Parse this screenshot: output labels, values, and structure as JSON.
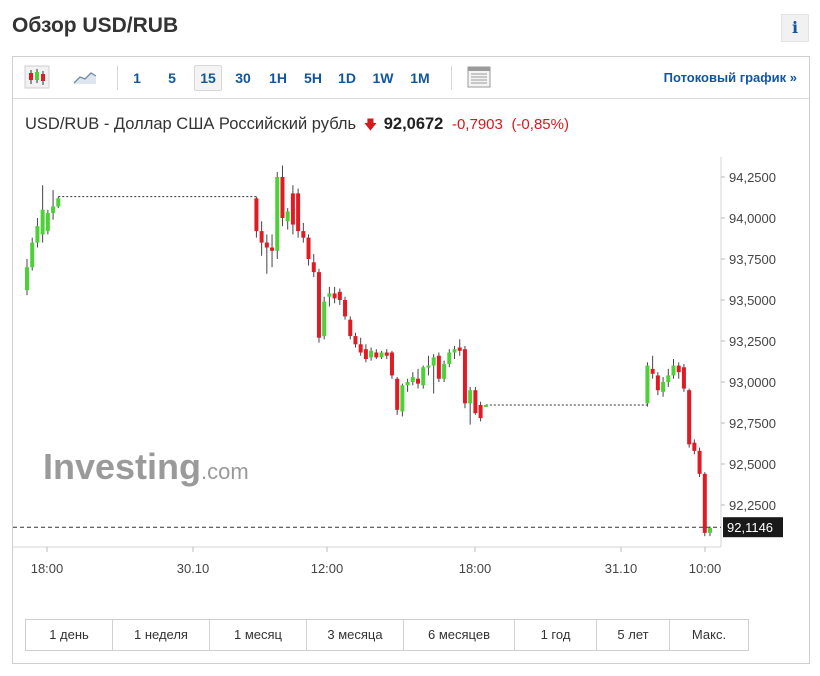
{
  "header": {
    "title": "Обзор USD/RUB",
    "info_label": "i"
  },
  "toolbar": {
    "intervals": [
      "1",
      "5",
      "15",
      "30",
      "1H",
      "5H",
      "1D",
      "1W",
      "1M"
    ],
    "active_interval": "15",
    "stream_label": "Потоковый график »"
  },
  "quote": {
    "name": "USD/RUB - Доллар США Российский рубль",
    "arrow": "🡇",
    "price": "92,0672",
    "change": "-0,7903",
    "change_pct": "(-0,85%)"
  },
  "watermark": {
    "brand": "Investing",
    "suffix": ".com"
  },
  "ranges": [
    "1 день",
    "1 неделя",
    "1 месяц",
    "3 месяца",
    "6 месяцев",
    "1 год",
    "5 лет",
    "Макс."
  ],
  "colors": {
    "up": "#4cd137",
    "down": "#e01b24",
    "link": "#1256a0",
    "last_price_bg": "#1a1a1a"
  },
  "chart_data": {
    "type": "candlestick",
    "y_ticks": [
      "94,2500",
      "94,0000",
      "93,7500",
      "93,5000",
      "93,2500",
      "93,0000",
      "92,7500",
      "92,5000",
      "92,2500"
    ],
    "y_tick_values": [
      94.25,
      94.0,
      93.75,
      93.5,
      93.25,
      93.0,
      92.75,
      92.5,
      92.25
    ],
    "x_ticks": [
      "18:00",
      "30.10",
      "12:00",
      "18:00",
      "31.10",
      "10:00"
    ],
    "ylim": [
      92.0,
      94.4
    ],
    "last_price_label": "92,1146",
    "last_price": 92.1146,
    "gridlines": false,
    "candles": [
      {
        "o": 93.56,
        "h": 93.75,
        "l": 93.53,
        "c": 93.7
      },
      {
        "o": 93.7,
        "h": 93.88,
        "l": 93.68,
        "c": 93.85
      },
      {
        "o": 93.85,
        "h": 94.0,
        "l": 93.82,
        "c": 93.95
      },
      {
        "o": 93.9,
        "h": 94.2,
        "l": 93.85,
        "c": 94.05
      },
      {
        "o": 93.92,
        "h": 94.05,
        "l": 93.9,
        "c": 94.03
      },
      {
        "o": 94.03,
        "h": 94.17,
        "l": 93.99,
        "c": 94.07
      },
      {
        "o": 94.07,
        "h": 94.13,
        "l": 94.06,
        "c": 94.12
      },
      {
        "o": 94.12,
        "h": 94.13,
        "l": 94.12,
        "c": 94.13
      },
      {
        "o": 94.13,
        "h": 94.13,
        "l": 94.13,
        "c": 94.13
      },
      {
        "o": 94.13,
        "h": 94.13,
        "l": 94.13,
        "c": 94.13
      },
      {
        "o": 94.13,
        "h": 94.13,
        "l": 94.13,
        "c": 94.13
      },
      {
        "o": 94.13,
        "h": 94.13,
        "l": 94.13,
        "c": 94.13
      },
      {
        "o": 94.13,
        "h": 94.13,
        "l": 94.13,
        "c": 94.13
      },
      {
        "o": 94.13,
        "h": 94.13,
        "l": 94.13,
        "c": 94.13
      },
      {
        "o": 94.13,
        "h": 94.13,
        "l": 94.13,
        "c": 94.13
      },
      {
        "o": 94.13,
        "h": 94.13,
        "l": 94.13,
        "c": 94.13
      },
      {
        "o": 94.13,
        "h": 94.13,
        "l": 94.13,
        "c": 94.13
      },
      {
        "o": 94.13,
        "h": 94.13,
        "l": 94.13,
        "c": 94.13
      },
      {
        "o": 94.13,
        "h": 94.13,
        "l": 94.13,
        "c": 94.13
      },
      {
        "o": 94.13,
        "h": 94.13,
        "l": 94.13,
        "c": 94.13
      },
      {
        "o": 94.13,
        "h": 94.13,
        "l": 94.13,
        "c": 94.13
      },
      {
        "o": 94.13,
        "h": 94.13,
        "l": 94.13,
        "c": 94.13
      },
      {
        "o": 94.13,
        "h": 94.13,
        "l": 94.13,
        "c": 94.13
      },
      {
        "o": 94.13,
        "h": 94.13,
        "l": 94.13,
        "c": 94.13
      },
      {
        "o": 94.13,
        "h": 94.13,
        "l": 94.13,
        "c": 94.13
      },
      {
        "o": 94.13,
        "h": 94.13,
        "l": 94.13,
        "c": 94.13
      },
      {
        "o": 94.13,
        "h": 94.13,
        "l": 94.13,
        "c": 94.13
      },
      {
        "o": 94.13,
        "h": 94.13,
        "l": 94.13,
        "c": 94.13
      },
      {
        "o": 94.13,
        "h": 94.13,
        "l": 94.13,
        "c": 94.13
      },
      {
        "o": 94.13,
        "h": 94.13,
        "l": 94.13,
        "c": 94.13
      },
      {
        "o": 94.13,
        "h": 94.13,
        "l": 94.13,
        "c": 94.13
      },
      {
        "o": 94.13,
        "h": 94.13,
        "l": 94.13,
        "c": 94.13
      },
      {
        "o": 94.13,
        "h": 94.13,
        "l": 94.13,
        "c": 94.13
      },
      {
        "o": 94.13,
        "h": 94.13,
        "l": 94.13,
        "c": 94.13
      },
      {
        "o": 94.13,
        "h": 94.13,
        "l": 94.13,
        "c": 94.13
      },
      {
        "o": 94.13,
        "h": 94.13,
        "l": 94.13,
        "c": 94.13
      },
      {
        "o": 94.13,
        "h": 94.13,
        "l": 94.13,
        "c": 94.13
      },
      {
        "o": 94.13,
        "h": 94.13,
        "l": 94.13,
        "c": 94.13
      },
      {
        "o": 94.13,
        "h": 94.13,
        "l": 94.13,
        "c": 94.13
      },
      {
        "o": 94.13,
        "h": 94.13,
        "l": 94.13,
        "c": 94.13
      },
      {
        "o": 94.13,
        "h": 94.13,
        "l": 94.13,
        "c": 94.13
      },
      {
        "o": 94.13,
        "h": 94.13,
        "l": 94.13,
        "c": 94.13
      },
      {
        "o": 94.13,
        "h": 94.13,
        "l": 94.13,
        "c": 94.13
      },
      {
        "o": 94.13,
        "h": 94.13,
        "l": 94.13,
        "c": 94.13
      },
      {
        "o": 94.12,
        "h": 94.13,
        "l": 93.88,
        "c": 93.92
      },
      {
        "o": 93.92,
        "h": 93.98,
        "l": 93.77,
        "c": 93.85
      },
      {
        "o": 93.85,
        "h": 93.9,
        "l": 93.66,
        "c": 93.82
      },
      {
        "o": 93.82,
        "h": 93.9,
        "l": 93.7,
        "c": 93.8
      },
      {
        "o": 93.8,
        "h": 94.28,
        "l": 93.75,
        "c": 94.25
      },
      {
        "o": 94.25,
        "h": 94.32,
        "l": 93.95,
        "c": 94.0
      },
      {
        "o": 93.98,
        "h": 94.06,
        "l": 93.93,
        "c": 94.04
      },
      {
        "o": 94.15,
        "h": 94.2,
        "l": 93.9,
        "c": 93.96
      },
      {
        "o": 94.15,
        "h": 94.18,
        "l": 93.88,
        "c": 93.92
      },
      {
        "o": 93.92,
        "h": 93.97,
        "l": 93.85,
        "c": 93.88
      },
      {
        "o": 93.88,
        "h": 93.9,
        "l": 93.71,
        "c": 93.75
      },
      {
        "o": 93.73,
        "h": 93.78,
        "l": 93.64,
        "c": 93.67
      },
      {
        "o": 93.67,
        "h": 93.69,
        "l": 93.24,
        "c": 93.27
      },
      {
        "o": 93.28,
        "h": 93.52,
        "l": 93.26,
        "c": 93.49
      },
      {
        "o": 93.52,
        "h": 93.58,
        "l": 93.46,
        "c": 93.54
      },
      {
        "o": 93.54,
        "h": 93.58,
        "l": 93.48,
        "c": 93.51
      },
      {
        "o": 93.55,
        "h": 93.57,
        "l": 93.47,
        "c": 93.5
      },
      {
        "o": 93.5,
        "h": 93.52,
        "l": 93.38,
        "c": 93.4
      },
      {
        "o": 93.38,
        "h": 93.4,
        "l": 93.26,
        "c": 93.28
      },
      {
        "o": 93.28,
        "h": 93.3,
        "l": 93.21,
        "c": 93.23
      },
      {
        "o": 93.23,
        "h": 93.27,
        "l": 93.16,
        "c": 93.18
      },
      {
        "o": 93.2,
        "h": 93.23,
        "l": 93.12,
        "c": 93.14
      },
      {
        "o": 93.15,
        "h": 93.21,
        "l": 93.13,
        "c": 93.19
      },
      {
        "o": 93.18,
        "h": 93.2,
        "l": 93.14,
        "c": 93.15
      },
      {
        "o": 93.15,
        "h": 93.19,
        "l": 93.14,
        "c": 93.18
      },
      {
        "o": 93.18,
        "h": 93.2,
        "l": 93.14,
        "c": 93.16
      },
      {
        "o": 93.18,
        "h": 93.19,
        "l": 93.02,
        "c": 93.04
      },
      {
        "o": 93.02,
        "h": 93.03,
        "l": 92.8,
        "c": 92.83
      },
      {
        "o": 92.82,
        "h": 92.99,
        "l": 92.79,
        "c": 92.98
      },
      {
        "o": 92.98,
        "h": 93.02,
        "l": 92.94,
        "c": 93.0
      },
      {
        "o": 93.0,
        "h": 93.06,
        "l": 92.98,
        "c": 93.03
      },
      {
        "o": 93.02,
        "h": 93.08,
        "l": 92.96,
        "c": 92.99
      },
      {
        "o": 92.98,
        "h": 93.1,
        "l": 92.96,
        "c": 93.09
      },
      {
        "o": 93.09,
        "h": 93.16,
        "l": 93.04,
        "c": 93.1
      },
      {
        "o": 93.1,
        "h": 93.17,
        "l": 92.93,
        "c": 93.15
      },
      {
        "o": 93.16,
        "h": 93.18,
        "l": 93.0,
        "c": 93.02
      },
      {
        "o": 93.02,
        "h": 93.13,
        "l": 93.0,
        "c": 93.11
      },
      {
        "o": 93.11,
        "h": 93.2,
        "l": 93.09,
        "c": 93.18
      },
      {
        "o": 93.18,
        "h": 93.22,
        "l": 93.14,
        "c": 93.2
      },
      {
        "o": 93.21,
        "h": 93.26,
        "l": 93.16,
        "c": 93.19
      },
      {
        "o": 93.2,
        "h": 93.22,
        "l": 92.84,
        "c": 92.87
      },
      {
        "o": 92.87,
        "h": 92.97,
        "l": 92.74,
        "c": 92.95
      },
      {
        "o": 92.95,
        "h": 92.97,
        "l": 92.8,
        "c": 92.81
      },
      {
        "o": 92.86,
        "h": 92.88,
        "l": 92.76,
        "c": 92.78
      },
      {
        "o": 92.86,
        "h": 92.86,
        "l": 92.86,
        "c": 92.86
      },
      {
        "o": 92.86,
        "h": 92.86,
        "l": 92.86,
        "c": 92.86
      },
      {
        "o": 92.86,
        "h": 92.86,
        "l": 92.86,
        "c": 92.86
      },
      {
        "o": 92.86,
        "h": 92.86,
        "l": 92.86,
        "c": 92.86
      },
      {
        "o": 92.86,
        "h": 92.86,
        "l": 92.86,
        "c": 92.86
      },
      {
        "o": 92.86,
        "h": 92.86,
        "l": 92.86,
        "c": 92.86
      },
      {
        "o": 92.86,
        "h": 92.86,
        "l": 92.86,
        "c": 92.86
      },
      {
        "o": 92.86,
        "h": 92.86,
        "l": 92.86,
        "c": 92.86
      },
      {
        "o": 92.86,
        "h": 92.86,
        "l": 92.86,
        "c": 92.86
      },
      {
        "o": 92.86,
        "h": 92.86,
        "l": 92.86,
        "c": 92.86
      },
      {
        "o": 92.86,
        "h": 92.86,
        "l": 92.86,
        "c": 92.86
      },
      {
        "o": 92.86,
        "h": 92.86,
        "l": 92.86,
        "c": 92.86
      },
      {
        "o": 92.86,
        "h": 92.86,
        "l": 92.86,
        "c": 92.86
      },
      {
        "o": 92.86,
        "h": 92.86,
        "l": 92.86,
        "c": 92.86
      },
      {
        "o": 92.86,
        "h": 92.86,
        "l": 92.86,
        "c": 92.86
      },
      {
        "o": 92.86,
        "h": 92.86,
        "l": 92.86,
        "c": 92.86
      },
      {
        "o": 92.86,
        "h": 92.86,
        "l": 92.86,
        "c": 92.86
      },
      {
        "o": 92.86,
        "h": 92.86,
        "l": 92.86,
        "c": 92.86
      },
      {
        "o": 92.86,
        "h": 92.86,
        "l": 92.86,
        "c": 92.86
      },
      {
        "o": 92.86,
        "h": 92.86,
        "l": 92.86,
        "c": 92.86
      },
      {
        "o": 92.86,
        "h": 92.86,
        "l": 92.86,
        "c": 92.86
      },
      {
        "o": 92.86,
        "h": 92.86,
        "l": 92.86,
        "c": 92.86
      },
      {
        "o": 92.86,
        "h": 92.86,
        "l": 92.86,
        "c": 92.86
      },
      {
        "o": 92.86,
        "h": 92.86,
        "l": 92.86,
        "c": 92.86
      },
      {
        "o": 92.86,
        "h": 92.86,
        "l": 92.86,
        "c": 92.86
      },
      {
        "o": 92.86,
        "h": 92.86,
        "l": 92.86,
        "c": 92.86
      },
      {
        "o": 92.86,
        "h": 92.86,
        "l": 92.86,
        "c": 92.86
      },
      {
        "o": 92.86,
        "h": 92.86,
        "l": 92.86,
        "c": 92.86
      },
      {
        "o": 92.86,
        "h": 92.86,
        "l": 92.86,
        "c": 92.86
      },
      {
        "o": 92.86,
        "h": 92.86,
        "l": 92.86,
        "c": 92.86
      },
      {
        "o": 92.86,
        "h": 92.86,
        "l": 92.86,
        "c": 92.86
      },
      {
        "o": 92.87,
        "h": 93.12,
        "l": 92.85,
        "c": 93.1
      },
      {
        "o": 93.08,
        "h": 93.16,
        "l": 93.02,
        "c": 93.05
      },
      {
        "o": 93.04,
        "h": 93.06,
        "l": 92.92,
        "c": 92.95
      },
      {
        "o": 92.94,
        "h": 93.03,
        "l": 92.91,
        "c": 93.0
      },
      {
        "o": 93.0,
        "h": 93.08,
        "l": 92.97,
        "c": 93.04
      },
      {
        "o": 93.04,
        "h": 93.14,
        "l": 93.02,
        "c": 93.1
      },
      {
        "o": 93.1,
        "h": 93.12,
        "l": 93.02,
        "c": 93.06
      },
      {
        "o": 93.09,
        "h": 93.11,
        "l": 92.94,
        "c": 92.96
      },
      {
        "o": 92.95,
        "h": 92.96,
        "l": 92.6,
        "c": 92.62
      },
      {
        "o": 92.63,
        "h": 92.65,
        "l": 92.56,
        "c": 92.58
      },
      {
        "o": 92.58,
        "h": 92.6,
        "l": 92.42,
        "c": 92.44
      },
      {
        "o": 92.44,
        "h": 92.45,
        "l": 92.06,
        "c": 92.08
      },
      {
        "o": 92.08,
        "h": 92.12,
        "l": 92.06,
        "c": 92.11
      }
    ],
    "gap_ranges": [
      [
        7,
        43
      ],
      [
        89,
        118
      ]
    ]
  }
}
